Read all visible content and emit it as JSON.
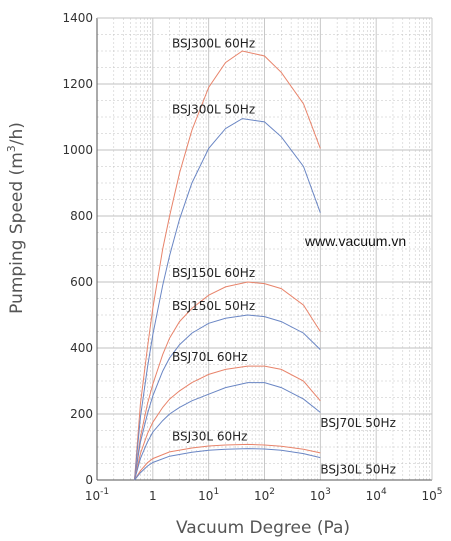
{
  "chart_data": {
    "type": "line",
    "xlabel": "Vacuum Degree (Pa)",
    "ylabel_prefix": "Pumping Speed (m",
    "ylabel_sup": "3",
    "ylabel_suffix": "/h)",
    "x_scale": "log",
    "xlim": [
      0.1,
      100000
    ],
    "ylim": [
      0,
      1400
    ],
    "grid": true,
    "x_ticks": [
      {
        "base": "10",
        "exp": "-1"
      },
      {
        "base": "1",
        "exp": ""
      },
      {
        "base": "10",
        "exp": "1"
      },
      {
        "base": "10",
        "exp": "2"
      },
      {
        "base": "10",
        "exp": "3"
      },
      {
        "base": "10",
        "exp": "4"
      },
      {
        "base": "10",
        "exp": "5"
      }
    ],
    "y_ticks": [
      "0",
      "200",
      "400",
      "600",
      "800",
      "1000",
      "1200",
      "1400"
    ],
    "watermark": "www.vacuum.vn",
    "colors": {
      "hz60": "#e8846b",
      "hz50": "#6a86c4",
      "grid": "#c2c2c2",
      "axis": "#555555"
    },
    "series": [
      {
        "name": "BSJ300L  60Hz",
        "color": "#e8846b",
        "x": [
          0.47,
          0.6,
          0.8,
          1,
          1.5,
          2,
          3,
          5,
          10,
          20,
          40,
          100,
          200,
          500,
          1000
        ],
        "y": [
          0,
          230,
          400,
          520,
          700,
          800,
          930,
          1060,
          1190,
          1265,
          1300,
          1285,
          1235,
          1140,
          1005
        ]
      },
      {
        "name": "BSJ300L  50Hz",
        "color": "#6a86c4",
        "x": [
          0.47,
          0.6,
          0.8,
          1,
          1.5,
          2,
          3,
          5,
          10,
          20,
          40,
          100,
          200,
          500,
          1000
        ],
        "y": [
          0,
          190,
          340,
          440,
          590,
          680,
          790,
          900,
          1005,
          1065,
          1095,
          1085,
          1040,
          950,
          810
        ]
      },
      {
        "name": "BSJ150L  60Hz",
        "color": "#e8846b",
        "x": [
          0.47,
          0.6,
          0.8,
          1,
          1.5,
          2,
          3,
          5,
          10,
          20,
          50,
          100,
          200,
          500,
          1000
        ],
        "y": [
          0,
          130,
          230,
          290,
          380,
          430,
          480,
          520,
          560,
          585,
          600,
          595,
          580,
          530,
          450
        ]
      },
      {
        "name": "BSJ150L  50Hz",
        "color": "#6a86c4",
        "x": [
          0.47,
          0.6,
          0.8,
          1,
          1.5,
          2,
          3,
          5,
          10,
          20,
          50,
          100,
          200,
          500,
          1000
        ],
        "y": [
          0,
          115,
          200,
          255,
          330,
          370,
          410,
          445,
          475,
          490,
          500,
          495,
          480,
          445,
          395
        ]
      },
      {
        "name": "BSJ70L  60Hz",
        "color": "#e8846b",
        "x": [
          0.47,
          0.6,
          0.8,
          1,
          1.5,
          2,
          3,
          5,
          10,
          20,
          50,
          100,
          200,
          500,
          1000
        ],
        "y": [
          0,
          80,
          140,
          175,
          220,
          245,
          270,
          295,
          320,
          335,
          345,
          345,
          335,
          300,
          240
        ]
      },
      {
        "name": "BSJ70L  50Hz",
        "color": "#6a86c4",
        "x": [
          0.47,
          0.6,
          0.8,
          1,
          1.5,
          2,
          3,
          5,
          10,
          20,
          50,
          100,
          200,
          500,
          1000
        ],
        "y": [
          0,
          65,
          115,
          145,
          180,
          200,
          220,
          240,
          260,
          280,
          295,
          295,
          280,
          245,
          205
        ]
      },
      {
        "name": "BSJ30L  60Hz",
        "color": "#e8846b",
        "x": [
          0.47,
          0.6,
          0.8,
          1,
          2,
          5,
          10,
          20,
          50,
          100,
          200,
          500,
          1000
        ],
        "y": [
          0,
          28,
          52,
          65,
          85,
          97,
          103,
          106,
          108,
          106,
          102,
          93,
          82
        ]
      },
      {
        "name": "BSJ30L  50Hz",
        "color": "#6a86c4",
        "x": [
          0.47,
          0.6,
          0.8,
          1,
          2,
          5,
          10,
          20,
          50,
          100,
          200,
          500,
          1000
        ],
        "y": [
          0,
          22,
          42,
          53,
          72,
          84,
          90,
          93,
          95,
          94,
          90,
          80,
          68
        ]
      }
    ]
  }
}
